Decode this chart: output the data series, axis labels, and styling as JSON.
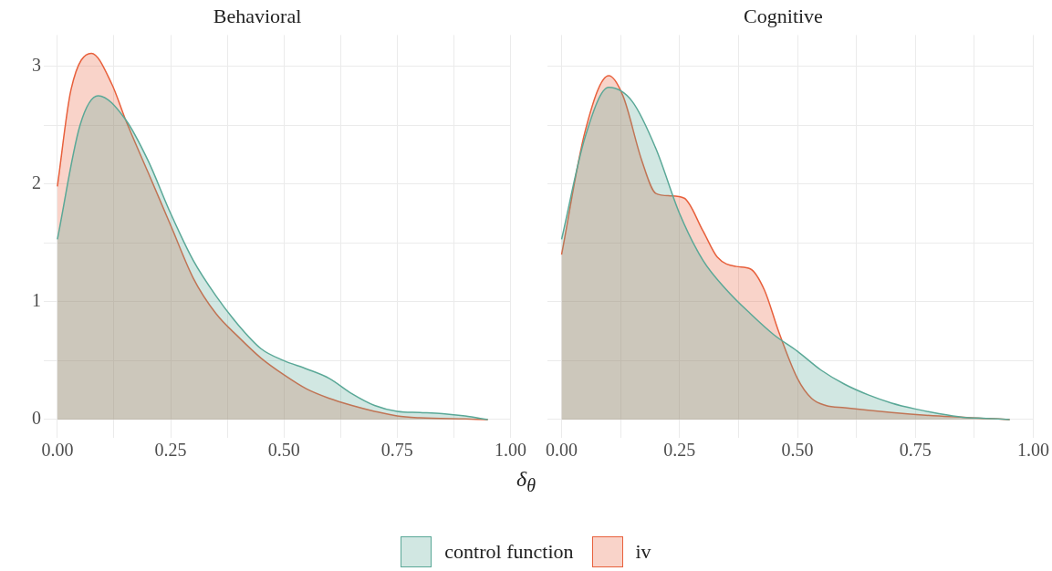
{
  "chart_data": [
    {
      "type": "area",
      "title": "Behavioral",
      "xlabel": "δ$_{θ}$",
      "legend": "bottom",
      "grid": true,
      "xlim": [
        -0.03,
        1.0
      ],
      "xticks": [
        {
          "value": 0,
          "label": "0.00"
        },
        {
          "value": 0.125,
          "label": null
        },
        {
          "value": 0.25,
          "label": "0.25"
        },
        {
          "value": 0.375,
          "label": null
        },
        {
          "value": 0.5,
          "label": "0.50"
        },
        {
          "value": 0.625,
          "label": null
        },
        {
          "value": 0.75,
          "label": "0.75"
        },
        {
          "value": 0.875,
          "label": null
        },
        {
          "value": 1,
          "label": "1.00"
        }
      ],
      "ylim": [
        -0.155,
        3.265
      ],
      "yticks": [
        0,
        {
          "value": 0.5,
          "label": null
        },
        1,
        {
          "value": 1.5,
          "label": null
        },
        2,
        {
          "value": 2.5,
          "label": null
        },
        3
      ],
      "series": [
        {
          "name": "control function",
          "color": "#5aa897",
          "x": [
            0,
            0.05,
            0.09,
            0.15,
            0.2,
            0.25,
            0.3,
            0.35,
            0.4,
            0.45,
            0.5,
            0.55,
            0.6,
            0.65,
            0.7,
            0.75,
            0.8,
            0.85,
            0.9,
            0.95
          ],
          "values": [
            1.53,
            2.5,
            2.75,
            2.55,
            2.2,
            1.75,
            1.35,
            1.05,
            0.8,
            0.6,
            0.5,
            0.43,
            0.35,
            0.22,
            0.12,
            0.07,
            0.06,
            0.05,
            0.03,
            0
          ]
        },
        {
          "name": "iv",
          "color": "#e8603c",
          "x": [
            0,
            0.03,
            0.075,
            0.12,
            0.15,
            0.2,
            0.25,
            0.3,
            0.35,
            0.4,
            0.45,
            0.5,
            0.55,
            0.6,
            0.65,
            0.7,
            0.75,
            0.8,
            0.9,
            0.95
          ],
          "values": [
            1.98,
            2.8,
            3.11,
            2.85,
            2.55,
            2.1,
            1.65,
            1.2,
            0.9,
            0.7,
            0.52,
            0.38,
            0.26,
            0.18,
            0.12,
            0.07,
            0.03,
            0.015,
            0.005,
            0
          ]
        }
      ]
    },
    {
      "type": "area",
      "title": "Cognitive",
      "grid": true,
      "tick_labels": "x",
      "xlim": [
        -0.03,
        1.0
      ],
      "xticks": [
        {
          "value": 0,
          "label": "0.00"
        },
        {
          "value": 0.125,
          "label": null
        },
        {
          "value": 0.25,
          "label": "0.25"
        },
        {
          "value": 0.375,
          "label": null
        },
        {
          "value": 0.5,
          "label": "0.50"
        },
        {
          "value": 0.625,
          "label": null
        },
        {
          "value": 0.75,
          "label": "0.75"
        },
        {
          "value": 0.875,
          "label": null
        },
        {
          "value": 1,
          "label": "1.00"
        }
      ],
      "ylim": [
        -0.155,
        3.265
      ],
      "yticks": [
        0,
        {
          "value": 0.5,
          "label": null
        },
        1,
        {
          "value": 1.5,
          "label": null
        },
        2,
        {
          "value": 2.5,
          "label": null
        },
        3
      ],
      "series": [
        {
          "name": "control function",
          "color": "#5aa897",
          "x": [
            0,
            0.05,
            0.1,
            0.15,
            0.2,
            0.25,
            0.3,
            0.35,
            0.4,
            0.45,
            0.5,
            0.55,
            0.6,
            0.65,
            0.7,
            0.75,
            0.8,
            0.85,
            0.9,
            0.95
          ],
          "values": [
            1.53,
            2.4,
            2.82,
            2.7,
            2.3,
            1.75,
            1.35,
            1.1,
            0.9,
            0.72,
            0.58,
            0.42,
            0.3,
            0.21,
            0.14,
            0.09,
            0.05,
            0.02,
            0.01,
            0
          ]
        },
        {
          "name": "iv",
          "color": "#e8603c",
          "x": [
            0,
            0.05,
            0.1,
            0.13,
            0.17,
            0.2,
            0.23,
            0.26,
            0.3,
            0.33,
            0.37,
            0.4,
            0.43,
            0.46,
            0.5,
            0.53,
            0.56,
            0.6,
            0.7,
            0.8,
            0.9,
            0.95
          ],
          "values": [
            1.4,
            2.45,
            2.92,
            2.75,
            2.2,
            1.92,
            1.9,
            1.88,
            1.6,
            1.38,
            1.3,
            1.28,
            1.1,
            0.75,
            0.35,
            0.18,
            0.12,
            0.1,
            0.06,
            0.03,
            0.01,
            0
          ]
        }
      ]
    }
  ]
}
